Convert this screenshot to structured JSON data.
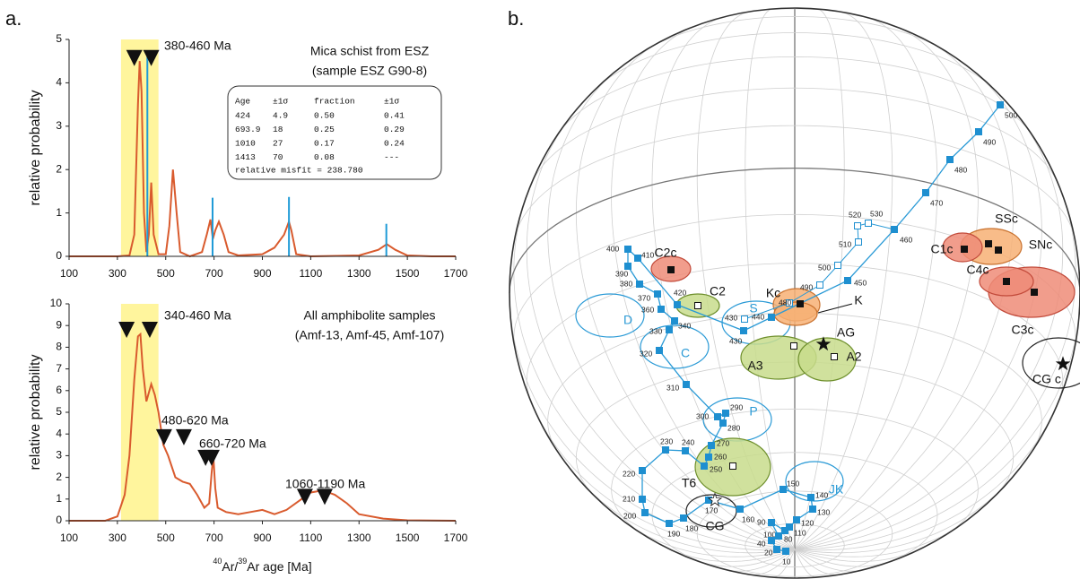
{
  "panel_labels": [
    "a.",
    "b."
  ],
  "chart_data": [
    {
      "type": "line",
      "ylabel": "relative probability",
      "xlim": [
        100,
        1700
      ],
      "xticks": [
        100,
        300,
        500,
        700,
        900,
        1100,
        1300,
        1500,
        1700
      ],
      "ylim": [
        0,
        5
      ],
      "yticks": [
        0,
        1,
        2,
        3,
        4,
        5
      ],
      "highlight": [
        315,
        470
      ],
      "highlight_color": "#fff59d",
      "annotations": [
        "380-460 Ma",
        "Mica schist from ESZ",
        "(sample ESZ G90-8)"
      ],
      "markers": {
        "x": [
          370,
          440
        ],
        "y": [
          4.57,
          4.57
        ]
      },
      "series": [
        {
          "color": "#d95b2e",
          "x": [
            100,
            300,
            350,
            370,
            385,
            392,
            400,
            410,
            420,
            430,
            440,
            450,
            470,
            500,
            515,
            530,
            545,
            560,
            600,
            650,
            670,
            685,
            695,
            705,
            720,
            740,
            760,
            800,
            900,
            950,
            990,
            1010,
            1020,
            1040,
            1100,
            1300,
            1380,
            1415,
            1450,
            1500,
            1600,
            1700
          ],
          "values": [
            0,
            0,
            0.02,
            0.5,
            3.5,
            4.5,
            3.8,
            1,
            0.1,
            0.5,
            1.7,
            0.5,
            0.05,
            0.05,
            0.7,
            2.0,
            1.0,
            0.1,
            0,
            0.1,
            0.5,
            0.85,
            0.4,
            0.6,
            0.8,
            0.5,
            0.1,
            0.02,
            0.05,
            0.2,
            0.5,
            0.8,
            0.6,
            0.05,
            0,
            0.02,
            0.15,
            0.28,
            0.15,
            0.02,
            0,
            0
          ]
        },
        {
          "color": "#1f9bd7",
          "style": "stem",
          "x": [
            424,
            693.9,
            1010,
            1413
          ],
          "values": [
            4.6,
            1.35,
            1.37,
            0.75
          ]
        }
      ],
      "table": {
        "header": [
          "Age",
          "±1σ",
          "fraction",
          "±1σ"
        ],
        "rows": [
          [
            "424",
            "4.9",
            "0.50",
            "0.41"
          ],
          [
            "693.9",
            "18",
            "0.25",
            "0.29"
          ],
          [
            "1010",
            "27",
            "0.17",
            "0.24"
          ],
          [
            "1413",
            "70",
            "0.08",
            "---"
          ]
        ],
        "footer": "relative misfit = 238.780"
      }
    },
    {
      "type": "line",
      "ylabel": "relative probability",
      "xlabel": [
        "40",
        "Ar/",
        "39",
        "Ar age [Ma]"
      ],
      "xlim": [
        100,
        1700
      ],
      "xticks": [
        100,
        300,
        500,
        700,
        900,
        1100,
        1300,
        1500,
        1700
      ],
      "ylim": [
        0,
        10
      ],
      "yticks": [
        0,
        1,
        2,
        3,
        4,
        5,
        6,
        7,
        8,
        9,
        10
      ],
      "highlight": [
        315,
        470
      ],
      "highlight_color": "#fff59d",
      "annotations": [
        "340-460 Ma",
        "All amphibolite samples",
        "(Amf-13, Amf-45, Amf-107)",
        "480-620 Ma",
        "660-720 Ma",
        "1060-1190 Ma"
      ],
      "markers": {
        "x": [
          338,
          434,
          493,
          575,
          665,
          690,
          1076,
          1158
        ],
        "y": [
          8.8,
          8.8,
          3.85,
          3.85,
          2.9,
          2.9,
          1.1,
          1.1
        ]
      },
      "series": [
        {
          "color": "#d95b2e",
          "x": [
            100,
            250,
            300,
            330,
            350,
            370,
            385,
            395,
            405,
            420,
            440,
            455,
            470,
            490,
            510,
            540,
            570,
            600,
            630,
            660,
            680,
            690,
            697,
            705,
            715,
            750,
            800,
            850,
            900,
            950,
            1000,
            1050,
            1100,
            1150,
            1200,
            1250,
            1300,
            1400,
            1500,
            1700
          ],
          "values": [
            0,
            0,
            0.2,
            1.2,
            3,
            6.5,
            8.5,
            8.6,
            7,
            5.5,
            6.3,
            5.8,
            5,
            3.5,
            3,
            2,
            1.8,
            1.7,
            1.2,
            0.6,
            0.8,
            2.2,
            3,
            1.5,
            0.6,
            0.4,
            0.3,
            0.4,
            0.5,
            0.3,
            0.5,
            0.9,
            1.3,
            1.4,
            1.2,
            0.8,
            0.3,
            0.1,
            0.02,
            0
          ]
        }
      ]
    }
  ],
  "stereonet": {
    "track": [
      "500",
      "490",
      "480",
      "470",
      "460",
      "450",
      "440",
      "430",
      "420",
      "410",
      "400",
      "390",
      "380",
      "370",
      "360",
      "340",
      "330",
      "320",
      "310",
      "300",
      "290",
      "280",
      "270",
      "260",
      "250",
      "240",
      "230",
      "220",
      "210",
      "200",
      "190",
      "180",
      "170",
      "160",
      "150",
      "140",
      "130",
      "120",
      "110",
      "100",
      "90",
      "80",
      "40",
      "20",
      "10"
    ],
    "alt_track": [
      "530",
      "520",
      "510",
      "500",
      "490",
      "480",
      "430"
    ],
    "regions": [
      "C2c",
      "C2",
      "D",
      "C",
      "S",
      "P",
      "JK",
      "Kc",
      "K",
      "A3",
      "AG",
      "A2",
      "SSc",
      "SNc",
      "C1c",
      "C4c",
      "C3c",
      "CG c",
      "T6",
      "CG"
    ]
  }
}
